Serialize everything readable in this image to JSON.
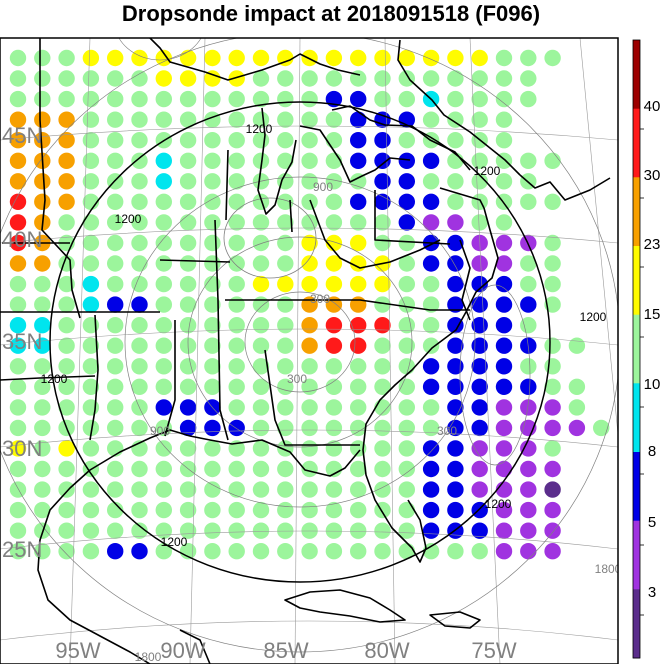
{
  "title": "Dropsonde impact at 2018091518 (F096)",
  "map": {
    "lat_labels": [
      "45N",
      "40N",
      "35N",
      "30N",
      "25N"
    ],
    "lon_labels": [
      "95W",
      "90W",
      "85W",
      "80W",
      "75W"
    ],
    "contours": [
      {
        "value": 300,
        "label": "300",
        "color": "#808080"
      },
      {
        "value": 900,
        "label": "900",
        "color": "#808080"
      },
      {
        "value": 1200,
        "label": "1200",
        "color": "#000000"
      },
      {
        "value": 1800,
        "label": "1800",
        "color": "#808080"
      }
    ],
    "colorbar": {
      "tick_labels": [
        "3",
        "5",
        "8",
        "10",
        "15",
        "23",
        "30",
        "40"
      ],
      "colors": [
        "#5b2d8c",
        "#a033e0",
        "#0000e6",
        "#00e5ee",
        "#9cf59c",
        "#fffc00",
        "#f7a000",
        "#ff1a1a",
        "#9c0000"
      ]
    },
    "impact_grid": {
      "rows": [
        "lllyyyyyyyyyyyyyyyyylll",
        "llllllyyyyllllllllllll",
        "lllllllllllllbbllcllll",
        "ooolllllllllllbbbllll",
        "ooolllllllllllbblllll",
        "ooolllclllllllbbbblllll",
        "ooolllcllllllllbblllll",
        "roolllllllllllbbbblllll",
        "rollllllllllllllbppll",
        "rollllllllllyyyllbbpppl",
        "oollllllllllyyyylbbppll",
        "lllcllllllyyyyyyllbbbll",
        "lllcbbllllllooolllbbbbl",
        "ccllllllllllorrrllbbbl",
        "ccllllllllllorrlllbbbbll",
        "lllllllllllllllllbbbbll",
        "lllllllllllllllllbbbbbll",
        "llllllbbblllllllllbbpppl",
        "lllllllbbbllllllllbbppppl",
        "ylyllllllllllllllbbpppl",
        "lllllllllllllllllbbpppp",
        "lllllllllllllllllbbpppd",
        "lllllllllllllllllbbbppp",
        "lllllllllllllllllbbbppp",
        "llllbbllllllllllllllppp"
      ]
    }
  }
}
